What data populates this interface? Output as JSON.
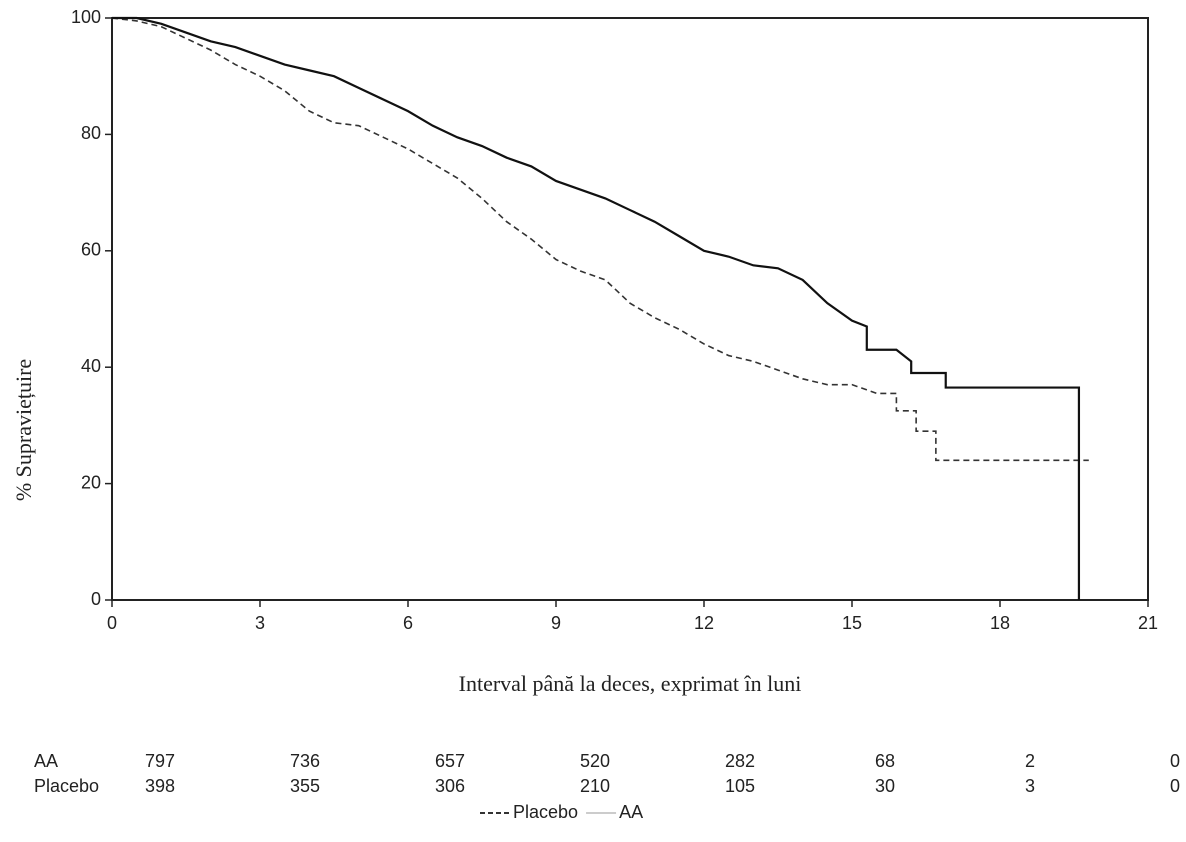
{
  "chart_data": {
    "type": "line",
    "x_label": "Interval până la deces, exprimat în luni",
    "y_label": "% Supraviețuire",
    "xlim": [
      0,
      21
    ],
    "xticks": [
      0,
      3,
      6,
      9,
      12,
      15,
      18,
      21
    ],
    "ylim": [
      0,
      100
    ],
    "yticks": [
      0,
      20,
      40,
      60,
      80,
      100
    ],
    "series": [
      {
        "name": "Placebo",
        "color": "#333333",
        "dash": true,
        "x": [
          0,
          0.5,
          1,
          1.5,
          2,
          2.5,
          3,
          3.5,
          4,
          4.5,
          5,
          5.5,
          6,
          6.5,
          7,
          7.5,
          8,
          8.5,
          9,
          9.5,
          10,
          10.5,
          11,
          11.5,
          12,
          12.5,
          13,
          13.5,
          14,
          14.5,
          15,
          15.5,
          15.5,
          15.9,
          15.9,
          16.3,
          16.3,
          16.7,
          16.7,
          19.8
        ],
        "y": [
          100,
          99.5,
          98.5,
          96.5,
          94.5,
          92,
          90,
          87.5,
          84,
          82,
          81.5,
          79.5,
          77.5,
          75,
          72.5,
          69,
          65,
          62,
          58.5,
          56.5,
          55,
          51,
          48.5,
          46.5,
          44,
          42,
          41,
          39.5,
          38,
          37,
          37,
          35.5,
          35.5,
          35.5,
          32.5,
          32.5,
          29,
          29,
          24,
          24
        ]
      },
      {
        "name": "AA",
        "color": "#111111",
        "dash": false,
        "x": [
          0,
          0.5,
          1,
          1.5,
          2,
          2.5,
          3,
          3.5,
          4,
          4.5,
          5,
          5.5,
          6,
          6.5,
          7,
          7.5,
          8,
          8.5,
          9,
          9.5,
          10,
          10.5,
          11,
          11.5,
          12,
          12.5,
          13,
          13.5,
          14,
          14.5,
          15,
          15.3,
          15.3,
          15.9,
          16.2,
          16.2,
          16.9,
          16.9,
          19.6,
          19.6
        ],
        "y": [
          100,
          100,
          99,
          97.5,
          96,
          95,
          93.5,
          92,
          91,
          90,
          88,
          86,
          84,
          81.5,
          79.5,
          78,
          76,
          74.5,
          72,
          70.5,
          69,
          67,
          65,
          62.5,
          60,
          59,
          57.5,
          57,
          55,
          51,
          48,
          47,
          43,
          43,
          41,
          39,
          39,
          36.5,
          36.5,
          0
        ]
      }
    ],
    "risk_table": [
      {
        "name": "AA",
        "counts": [
          797,
          736,
          657,
          520,
          282,
          68,
          2,
          0
        ]
      },
      {
        "name": "Placebo",
        "counts": [
          398,
          355,
          306,
          210,
          105,
          30,
          3,
          0
        ]
      }
    ]
  }
}
